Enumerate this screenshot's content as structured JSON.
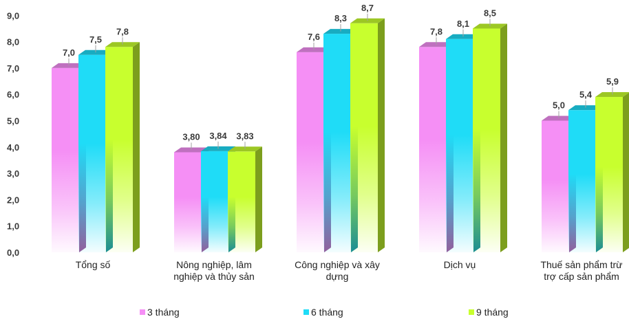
{
  "chart_data": {
    "type": "bar",
    "categories": [
      [
        "Tổng số"
      ],
      [
        "Nông nghiệp, lâm",
        "nghiệp và thủy sản"
      ],
      [
        "Công nghiệp và xây",
        "dựng"
      ],
      [
        "Dịch vụ"
      ],
      [
        "Thuế sản phẩm trừ",
        "trợ cấp sản phẩm"
      ]
    ],
    "series": [
      {
        "name": "3 tháng",
        "color": "#f58ff5",
        "values": [
          7.0,
          3.8,
          7.6,
          7.8,
          5.0
        ],
        "labels": [
          "7,0",
          "3,80",
          "7,6",
          "7,8",
          "5,0"
        ]
      },
      {
        "name": "6 tháng",
        "color": "#1fdcf7",
        "values": [
          7.5,
          3.84,
          8.3,
          8.1,
          5.4
        ],
        "labels": [
          "7,5",
          "3,84",
          "8,3",
          "8,1",
          "5,4"
        ]
      },
      {
        "name": "9 tháng",
        "color": "#c8ff2e",
        "values": [
          7.8,
          3.83,
          8.7,
          8.5,
          5.9
        ],
        "labels": [
          "7,8",
          "3,83",
          "8,7",
          "8,5",
          "5,9"
        ]
      }
    ],
    "ylim": [
      0,
      9
    ],
    "yticks": [
      0,
      1,
      2,
      3,
      4,
      5,
      6,
      7,
      8,
      9
    ],
    "ytick_labels": [
      "0,0",
      "1,0",
      "2,0",
      "3,0",
      "4,0",
      "5,0",
      "6,0",
      "7,0",
      "8,0",
      "9,0"
    ],
    "legend_position": "bottom",
    "grid": false
  }
}
